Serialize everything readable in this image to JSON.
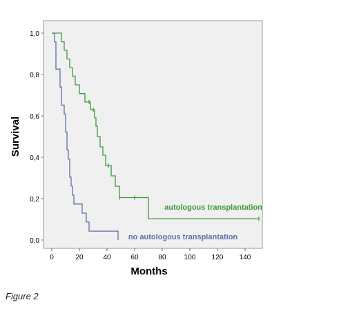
{
  "caption": "Figure 2",
  "chart_data": {
    "type": "line",
    "subtype": "kaplan-meier step survival curves",
    "xlabel": "Months",
    "ylabel": "Survival",
    "xlim": [
      0,
      160
    ],
    "ylim": [
      0,
      1.0
    ],
    "x_ticks": [
      "0",
      "20",
      "40",
      "60",
      "80",
      "100",
      "120",
      "140"
    ],
    "y_ticks": [
      "0,0",
      "0,2",
      "0,4",
      "0,6",
      "0,8",
      "1,0"
    ],
    "grid": false,
    "plot_background": "#f0f0f0",
    "series": [
      {
        "name": "autologous transplantation",
        "color": "#3a9a3a",
        "points": [
          [
            0,
            1.0
          ],
          [
            7,
            1.0
          ],
          [
            7,
            0.958
          ],
          [
            9,
            0.958
          ],
          [
            9,
            0.917
          ],
          [
            11,
            0.917
          ],
          [
            11,
            0.875
          ],
          [
            13,
            0.875
          ],
          [
            13,
            0.833
          ],
          [
            15,
            0.833
          ],
          [
            15,
            0.792
          ],
          [
            17,
            0.792
          ],
          [
            17,
            0.75
          ],
          [
            20,
            0.75
          ],
          [
            20,
            0.708
          ],
          [
            24,
            0.708
          ],
          [
            24,
            0.667
          ],
          [
            28,
            0.667
          ],
          [
            28,
            0.63
          ],
          [
            31,
            0.63
          ],
          [
            31,
            0.59
          ],
          [
            32,
            0.59
          ],
          [
            32,
            0.55
          ],
          [
            33,
            0.55
          ],
          [
            33,
            0.5
          ],
          [
            35,
            0.5
          ],
          [
            35,
            0.45
          ],
          [
            37,
            0.45
          ],
          [
            37,
            0.41
          ],
          [
            39,
            0.41
          ],
          [
            39,
            0.36
          ],
          [
            43,
            0.36
          ],
          [
            43,
            0.31
          ],
          [
            46,
            0.31
          ],
          [
            46,
            0.26
          ],
          [
            49,
            0.26
          ],
          [
            49,
            0.205
          ],
          [
            70,
            0.205
          ],
          [
            70,
            0.103
          ],
          [
            150,
            0.103
          ]
        ],
        "censor_marks": [
          [
            27,
            0.667
          ],
          [
            30,
            0.63
          ],
          [
            41,
            0.36
          ],
          [
            49,
            0.205
          ],
          [
            60,
            0.205
          ],
          [
            150,
            0.103
          ]
        ]
      },
      {
        "name": "no autologous transplantation",
        "color": "#5b6fa8",
        "points": [
          [
            0,
            1.0
          ],
          [
            2,
            1.0
          ],
          [
            2,
            0.957
          ],
          [
            3,
            0.957
          ],
          [
            3,
            0.826
          ],
          [
            6,
            0.826
          ],
          [
            6,
            0.739
          ],
          [
            7,
            0.739
          ],
          [
            7,
            0.652
          ],
          [
            9,
            0.652
          ],
          [
            9,
            0.609
          ],
          [
            10,
            0.609
          ],
          [
            10,
            0.522
          ],
          [
            11,
            0.522
          ],
          [
            11,
            0.435
          ],
          [
            12,
            0.435
          ],
          [
            12,
            0.391
          ],
          [
            13,
            0.391
          ],
          [
            13,
            0.304
          ],
          [
            14,
            0.304
          ],
          [
            14,
            0.261
          ],
          [
            15,
            0.261
          ],
          [
            15,
            0.217
          ],
          [
            16,
            0.217
          ],
          [
            16,
            0.174
          ],
          [
            22,
            0.174
          ],
          [
            22,
            0.13
          ],
          [
            25,
            0.13
          ],
          [
            25,
            0.087
          ],
          [
            27,
            0.087
          ],
          [
            27,
            0.043
          ],
          [
            48,
            0.043
          ],
          [
            48,
            0.0
          ]
        ],
        "censor_marks": []
      }
    ]
  }
}
